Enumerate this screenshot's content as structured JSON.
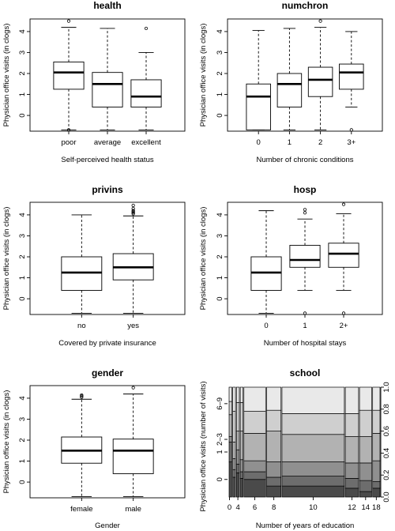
{
  "chart_data": [
    {
      "type": "boxplot",
      "title": "health",
      "xlabel": "Self-perceived health status",
      "ylabel": "Physician office visits (in clogs)",
      "ylim": [
        -0.75,
        4.6
      ],
      "yticks": [
        "0",
        "1",
        "2",
        "3",
        "4"
      ],
      "categories": [
        "poor",
        "average",
        "excellent"
      ],
      "boxes": [
        {
          "whislo": -0.69,
          "q1": 1.25,
          "med": 2.05,
          "q3": 2.55,
          "whishi": 4.2,
          "fliers": [
            4.5,
            -0.69
          ]
        },
        {
          "whislo": -0.69,
          "q1": 0.4,
          "med": 1.5,
          "q3": 2.05,
          "whishi": 4.15,
          "fliers": []
        },
        {
          "whislo": -0.69,
          "q1": 0.4,
          "med": 0.9,
          "q3": 1.7,
          "whishi": 3.0,
          "fliers": [
            4.15
          ]
        }
      ]
    },
    {
      "type": "boxplot",
      "title": "numchron",
      "xlabel": "Number of chronic conditions",
      "ylabel": "Physician office visits (in clogs)",
      "ylim": [
        -0.75,
        4.6
      ],
      "yticks": [
        "0",
        "1",
        "2",
        "3",
        "4"
      ],
      "categories": [
        "0",
        "1",
        "2",
        "3+"
      ],
      "boxes": [
        {
          "whislo": -0.69,
          "q1": -0.69,
          "med": 0.9,
          "q3": 1.5,
          "whishi": 4.05,
          "fliers": []
        },
        {
          "whislo": -0.69,
          "q1": 0.4,
          "med": 1.5,
          "q3": 2.0,
          "whishi": 4.15,
          "fliers": []
        },
        {
          "whislo": -0.69,
          "q1": 0.9,
          "med": 1.7,
          "q3": 2.3,
          "whishi": 4.2,
          "fliers": [
            4.5
          ]
        },
        {
          "whislo": 0.4,
          "q1": 1.25,
          "med": 2.05,
          "q3": 2.45,
          "whishi": 4.0,
          "fliers": [
            -0.69
          ]
        }
      ]
    },
    {
      "type": "boxplot",
      "title": "privins",
      "xlabel": "Covered by private insurance",
      "ylabel": "Physician office visits (in clogs)",
      "ylim": [
        -0.75,
        4.6
      ],
      "yticks": [
        "0",
        "1",
        "2",
        "3",
        "4"
      ],
      "categories": [
        "no",
        "yes"
      ],
      "boxes": [
        {
          "whislo": -0.69,
          "q1": 0.4,
          "med": 1.25,
          "q3": 2.0,
          "whishi": 4.0,
          "fliers": []
        },
        {
          "whislo": -0.69,
          "q1": 0.9,
          "med": 1.5,
          "q3": 2.15,
          "whishi": 3.95,
          "fliers": [
            4.05,
            4.1,
            4.15,
            4.2,
            4.3,
            4.45
          ]
        }
      ]
    },
    {
      "type": "boxplot",
      "title": "hosp",
      "xlabel": "Number of hospital stays",
      "ylabel": "Physician office visits (in clogs)",
      "ylim": [
        -0.75,
        4.6
      ],
      "yticks": [
        "0",
        "1",
        "2",
        "3",
        "4"
      ],
      "categories": [
        "0",
        "1",
        "2+"
      ],
      "boxes": [
        {
          "whislo": -0.69,
          "q1": 0.4,
          "med": 1.25,
          "q3": 2.0,
          "whishi": 4.2,
          "fliers": []
        },
        {
          "whislo": 0.4,
          "q1": 1.5,
          "med": 1.85,
          "q3": 2.55,
          "whishi": 3.8,
          "fliers": [
            4.1,
            4.25,
            -0.69
          ]
        },
        {
          "whislo": 0.4,
          "q1": 1.5,
          "med": 2.15,
          "q3": 2.65,
          "whishi": 4.05,
          "fliers": [
            4.5,
            -0.69
          ]
        }
      ]
    },
    {
      "type": "boxplot",
      "title": "gender",
      "xlabel": "Gender",
      "ylabel": "Physician office visits (in clogs)",
      "ylim": [
        -0.75,
        4.6
      ],
      "yticks": [
        "0",
        "1",
        "2",
        "3",
        "4"
      ],
      "categories": [
        "female",
        "male"
      ],
      "boxes": [
        {
          "whislo": -0.69,
          "q1": 0.9,
          "med": 1.5,
          "q3": 2.15,
          "whishi": 3.95,
          "fliers": [
            4.05,
            4.1,
            4.15
          ]
        },
        {
          "whislo": -0.69,
          "q1": 0.4,
          "med": 1.5,
          "q3": 2.05,
          "whishi": 4.2,
          "fliers": [
            4.5
          ]
        }
      ]
    },
    {
      "type": "spineplot",
      "title": "school",
      "xlabel": "Number of years of education",
      "ylabel": "Physician office visits (number of visits)",
      "x_ticks": [
        "0",
        "4",
        "6",
        "8",
        "10",
        "12",
        "14",
        "18"
      ],
      "y_left_ticks": [
        "0",
        "1",
        "2–3",
        "6–9"
      ],
      "y_right_ticks": [
        "0.0",
        "0.2",
        "0.4",
        "0.6",
        "0.8",
        "1.0"
      ],
      "shades": [
        "#4a4a4a",
        "#6d6d6d",
        "#909090",
        "#b2b2b2",
        "#cfcfcf",
        "#e9e9e9"
      ],
      "columns": [
        {
          "label": "0",
          "width": 0.017,
          "breaks": [
            0.32,
            0.5,
            0.55,
            0.75,
            0.87
          ]
        },
        {
          "label": "",
          "width": 0.017,
          "breaks": [
            0.18,
            0.25,
            0.35,
            0.5,
            0.78
          ]
        },
        {
          "label": "4",
          "width": 0.018,
          "breaks": [
            0.22,
            0.3,
            0.43,
            0.6,
            0.86
          ]
        },
        {
          "label": "",
          "width": 0.017,
          "breaks": [
            0.17,
            0.23,
            0.34,
            0.6,
            0.86
          ]
        },
        {
          "label": "6",
          "width": 0.136,
          "breaks": [
            0.16,
            0.23,
            0.33,
            0.58,
            0.78
          ]
        },
        {
          "label": "8",
          "width": 0.09,
          "breaks": [
            0.1,
            0.18,
            0.32,
            0.6,
            0.79
          ]
        },
        {
          "label": "10",
          "width": 0.39,
          "breaks": [
            0.1,
            0.19,
            0.32,
            0.57,
            0.76
          ]
        },
        {
          "label": "12",
          "width": 0.083,
          "breaks": [
            0.08,
            0.17,
            0.31,
            0.55,
            0.76
          ]
        },
        {
          "label": "14",
          "width": 0.076,
          "breaks": [
            0.05,
            0.15,
            0.31,
            0.55,
            0.79
          ]
        },
        {
          "label": "18",
          "width": 0.046,
          "breaks": [
            0.08,
            0.14,
            0.33,
            0.58,
            0.79
          ]
        }
      ]
    }
  ]
}
